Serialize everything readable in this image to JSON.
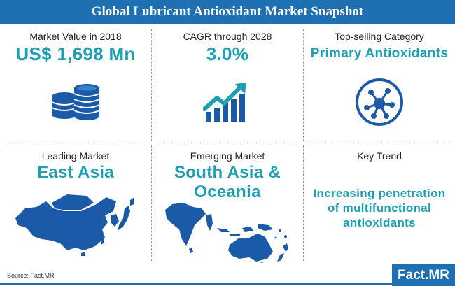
{
  "title": "Global Lubricant Antioxidant Market Snapshot",
  "cells": [
    {
      "label": "Market Value in 2018",
      "value": [
        "US$ 1,698 Mn"
      ],
      "icon": "coins-stack-icon"
    },
    {
      "label": "CAGR through 2028",
      "value": [
        "3.0%"
      ],
      "icon": "growth-bar-chart-icon"
    },
    {
      "label": "Top-selling Category",
      "value": [
        "Primary Antioxidants"
      ],
      "icon": "molecule-network-icon"
    },
    {
      "label": "Leading Market",
      "value": [
        "East Asia"
      ],
      "icon": "east-asia-map-icon"
    },
    {
      "label": "Emerging Market",
      "value": [
        "South Asia &",
        "Oceania"
      ],
      "icon": "south-asia-oceania-map-icon"
    },
    {
      "label": "Key Trend",
      "value": [
        "Increasing penetration",
        "of multifunctional",
        "antioxidants"
      ]
    }
  ],
  "source": "Source: Fact.MR",
  "logo": "Fact.MR",
  "colors": {
    "brand_blue": "#1f6fb3",
    "accent_teal": "#1f9fb2",
    "icon_blue": "#1a5aa6"
  }
}
